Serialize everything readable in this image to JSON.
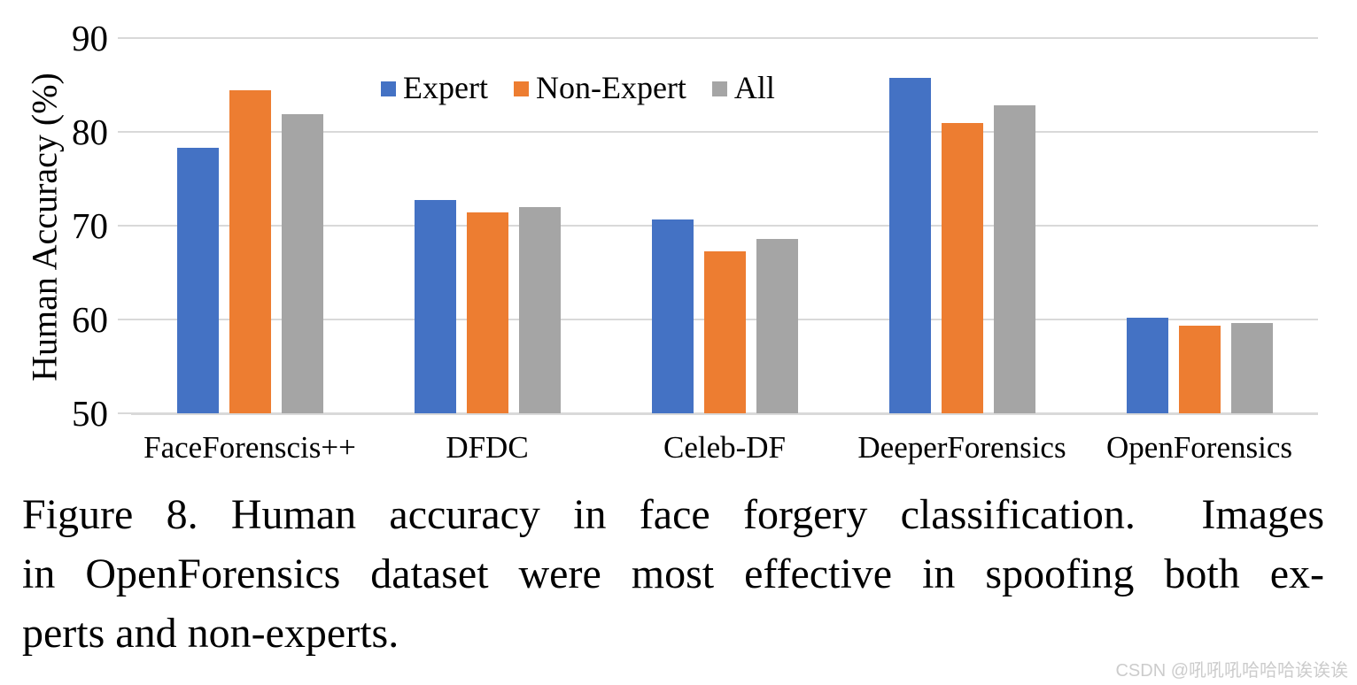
{
  "chart_data": {
    "type": "bar",
    "title": "",
    "xlabel": "",
    "ylabel": "Human Accuracy (%)",
    "ylim": [
      50,
      90
    ],
    "yticks": [
      90,
      80,
      70,
      60,
      50
    ],
    "grid": true,
    "grid_color": "#d9d9d9",
    "legend_position": "top-center",
    "categories": [
      "FaceForenscis++",
      "DFDC",
      "Celeb-DF",
      "DeeperForensics",
      "OpenForensics"
    ],
    "series": [
      {
        "name": "Expert",
        "color": "#4472C4",
        "values": [
          78.3,
          72.7,
          70.7,
          85.8,
          60.2
        ]
      },
      {
        "name": "Non-Expert",
        "color": "#ED7D31",
        "values": [
          84.4,
          71.4,
          67.3,
          80.9,
          59.3
        ]
      },
      {
        "name": "All",
        "color": "#A5A5A5",
        "values": [
          81.9,
          72.0,
          68.6,
          82.8,
          59.6
        ]
      }
    ]
  },
  "caption": {
    "lines": [
      "Figure 8. Human accuracy in face forgery classification.  Images",
      "in OpenForensics dataset were most effective in spoofing both ex-",
      "perts and non-experts."
    ]
  },
  "watermark": {
    "text": "CSDN @吼吼吼哈哈哈诶诶诶",
    "color": "#cccccc"
  }
}
